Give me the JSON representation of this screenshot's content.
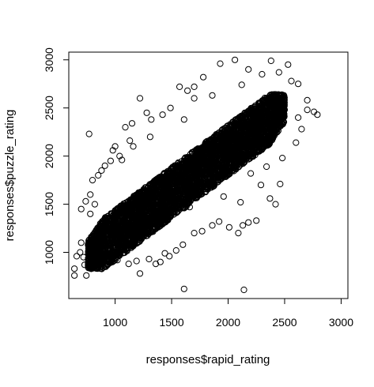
{
  "chart_data": {
    "type": "scatter",
    "title": "",
    "xlabel": "responses$rapid_rating",
    "ylabel": "responses$puzzle_rating",
    "xlim": [
      590,
      3060
    ],
    "ylim": [
      520,
      3080
    ],
    "xticks": [
      1000,
      1500,
      2000,
      2500,
      3000
    ],
    "yticks": [
      1000,
      1500,
      2000,
      2500,
      3000
    ],
    "xtick_labels": [
      "1000",
      "1500",
      "2000",
      "2500",
      "3000"
    ],
    "ytick_labels": [
      "1000",
      "1500",
      "2000",
      "2500",
      "3000"
    ],
    "grid": false,
    "legend": "none",
    "marker": "open-circle",
    "marker_color": "#000000",
    "trend": {
      "slope": 0.88,
      "intercept": 300
    },
    "core": {
      "x_range": [
        760,
        2500
      ],
      "half_width": 260
    },
    "points": [
      [
        640,
        760
      ],
      [
        640,
        830
      ],
      [
        660,
        960
      ],
      [
        690,
        1000
      ],
      [
        700,
        1100
      ],
      [
        720,
        950
      ],
      [
        730,
        870
      ],
      [
        745,
        760
      ],
      [
        770,
        2230
      ],
      [
        700,
        1450
      ],
      [
        740,
        1530
      ],
      [
        780,
        1600
      ],
      [
        800,
        1750
      ],
      [
        850,
        1800
      ],
      [
        910,
        1900
      ],
      [
        980,
        2060
      ],
      [
        1000,
        2100
      ],
      [
        1040,
        2000
      ],
      [
        1090,
        2300
      ],
      [
        1130,
        2160
      ],
      [
        1150,
        2340
      ],
      [
        1220,
        2600
      ],
      [
        1280,
        2450
      ],
      [
        1310,
        2200
      ],
      [
        1420,
        2430
      ],
      [
        1490,
        2500
      ],
      [
        1570,
        2720
      ],
      [
        1640,
        2680
      ],
      [
        1700,
        2720
      ],
      [
        1780,
        2820
      ],
      [
        1930,
        2960
      ],
      [
        2060,
        3000
      ],
      [
        2180,
        2900
      ],
      [
        2380,
        2990
      ],
      [
        2530,
        2950
      ],
      [
        2620,
        2750
      ],
      [
        2700,
        2580
      ],
      [
        2760,
        2460
      ],
      [
        2790,
        2430
      ],
      [
        2650,
        2280
      ],
      [
        2600,
        2140
      ],
      [
        2480,
        1980
      ],
      [
        2460,
        1710
      ],
      [
        2420,
        1500
      ],
      [
        2370,
        1560
      ],
      [
        2250,
        1330
      ],
      [
        2180,
        1310
      ],
      [
        2130,
        1280
      ],
      [
        2090,
        1200
      ],
      [
        2010,
        1260
      ],
      [
        1920,
        1320
      ],
      [
        1860,
        1280
      ],
      [
        1770,
        1220
      ],
      [
        1700,
        1200
      ],
      [
        1600,
        1080
      ],
      [
        1540,
        1020
      ],
      [
        1480,
        960
      ],
      [
        1440,
        990
      ],
      [
        1400,
        900
      ],
      [
        1360,
        880
      ],
      [
        1300,
        930
      ],
      [
        1220,
        780
      ],
      [
        1610,
        620
      ],
      [
        2140,
        610
      ],
      [
        950,
        900
      ],
      [
        1020,
        920
      ],
      [
        1120,
        880
      ],
      [
        1190,
        910
      ],
      [
        1660,
        1470
      ],
      [
        1960,
        1580
      ],
      [
        2110,
        1520
      ],
      [
        2290,
        1700
      ],
      [
        2340,
        1890
      ],
      [
        2200,
        1820
      ],
      [
        1160,
        2100
      ],
      [
        1060,
        1960
      ],
      [
        1610,
        2380
      ],
      [
        1860,
        2630
      ],
      [
        2120,
        2740
      ],
      [
        2300,
        2850
      ],
      [
        2450,
        2870
      ],
      [
        2560,
        2780
      ],
      [
        2700,
        2480
      ],
      [
        2620,
        2400
      ],
      [
        960,
        1950
      ],
      [
        880,
        1850
      ],
      [
        820,
        1500
      ],
      [
        780,
        1400
      ],
      [
        1320,
        2380
      ],
      [
        1700,
        2600
      ]
    ]
  }
}
